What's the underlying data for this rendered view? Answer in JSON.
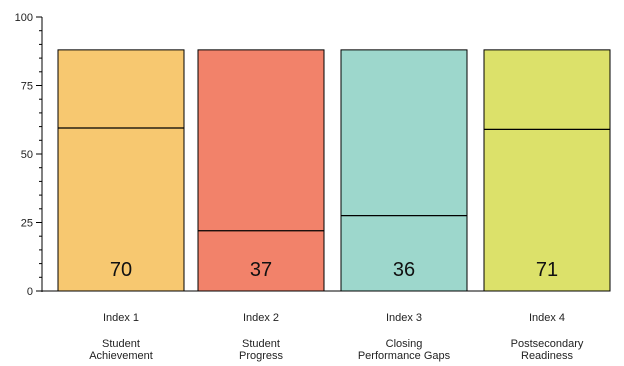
{
  "chart_data": {
    "type": "bar",
    "ylim": [
      0,
      100
    ],
    "yticks": [
      0,
      25,
      50,
      75,
      100
    ],
    "categories": [
      {
        "index_label": "Index 1",
        "name_lines": [
          "Student",
          "Achievement"
        ]
      },
      {
        "index_label": "Index 2",
        "name_lines": [
          "Student",
          "Progress"
        ]
      },
      {
        "index_label": "Index 3",
        "name_lines": [
          "Closing",
          "Performance Gaps"
        ]
      },
      {
        "index_label": "Index 4",
        "name_lines": [
          "Postsecondary",
          "Readiness"
        ]
      }
    ],
    "bar_top": 88,
    "threshold_lines": [
      59.5,
      22,
      27.5,
      59
    ],
    "scores": [
      70,
      37,
      36,
      71
    ],
    "colors": [
      "#F7C870",
      "#F2826A",
      "#9DD7CC",
      "#DCE16A"
    ]
  }
}
